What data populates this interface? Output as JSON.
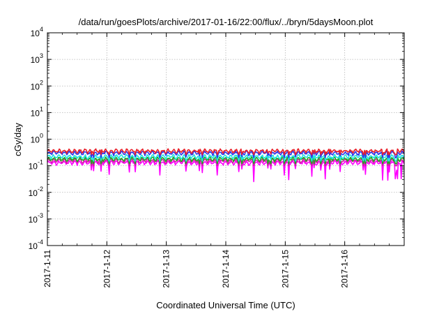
{
  "chart_data": {
    "type": "line",
    "title": "/data/run/goesPlots/archive/2017-01-16/22:00/flux/../bryn/5daysMoon.plot",
    "xlabel": "Coordinated Universal Time (UTC)",
    "ylabel": "cGy/day",
    "yscale": "log",
    "ylim": [
      0.0001,
      10000
    ],
    "xlim": [
      "2017-01-11",
      "2017-01-17"
    ],
    "grid": true,
    "y_ticks": [
      {
        "base": "10",
        "exp": "4",
        "value": 10000
      },
      {
        "base": "10",
        "exp": "3",
        "value": 1000
      },
      {
        "base": "10",
        "exp": "2",
        "value": 100
      },
      {
        "base": "10",
        "exp": "1",
        "value": 10
      },
      {
        "base": "10",
        "exp": "0",
        "value": 1
      },
      {
        "base": "10",
        "exp": "-1",
        "value": 0.1
      },
      {
        "base": "10",
        "exp": "-2",
        "value": 0.01
      },
      {
        "base": "10",
        "exp": "-3",
        "value": 0.001
      },
      {
        "base": "10",
        "exp": "-4",
        "value": 0.0001
      }
    ],
    "x_ticks": [
      "2017-1-11",
      "2017-1-12",
      "2017-1-13",
      "2017-1-14",
      "2017-1-15",
      "2017-1-16"
    ],
    "series": [
      {
        "color": "#e8202a",
        "base_value": 0.36,
        "min_value": 0.26
      },
      {
        "color": "#2f35e8",
        "base_value": 0.3,
        "min_value": 0.2
      },
      {
        "color": "#22e3e3",
        "base_value": 0.22,
        "min_value": 0.15
      },
      {
        "color": "#1fa81f",
        "base_value": 0.18,
        "min_value": 0.12
      },
      {
        "color": "#d020a0",
        "base_value": 0.155,
        "min_value": 0.1
      },
      {
        "color": "#ff00ff",
        "base_value": 0.13,
        "min_value": 0.025
      }
    ]
  }
}
